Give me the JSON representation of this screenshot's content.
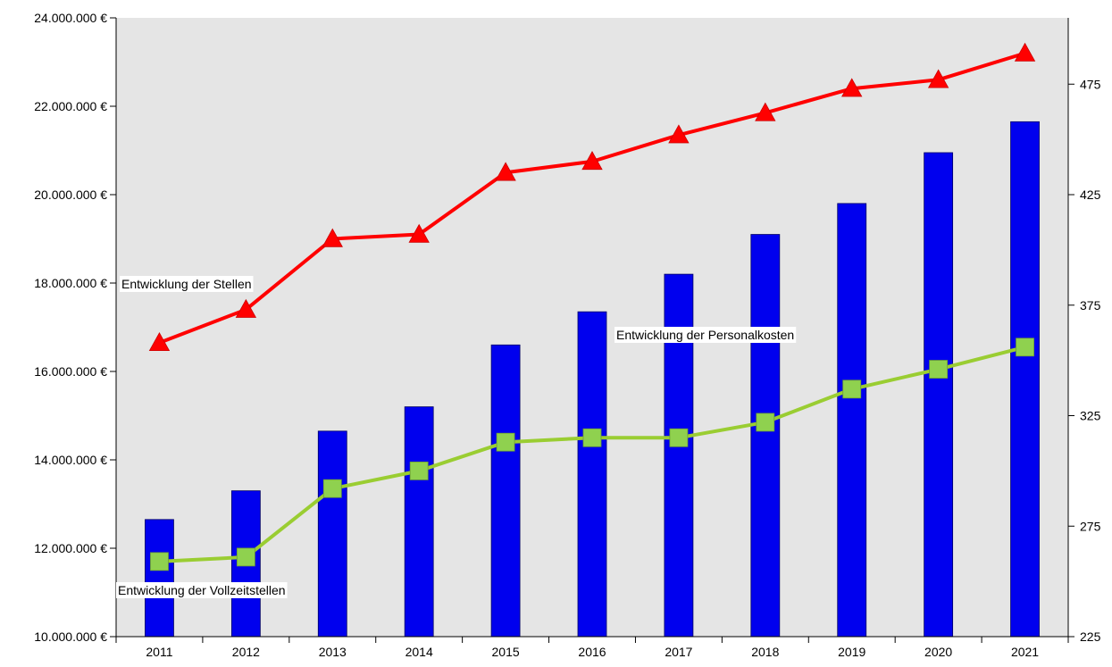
{
  "chart_data": {
    "type": "bar",
    "categories": [
      "2011",
      "2012",
      "2013",
      "2014",
      "2015",
      "2016",
      "2017",
      "2018",
      "2019",
      "2020",
      "2021"
    ],
    "left_axis": {
      "ylim": [
        10000000,
        24000000
      ],
      "ticks": [
        "10.000.000 €",
        "12.000.000 €",
        "14.000.000 €",
        "16.000.000 €",
        "18.000.000 €",
        "20.000.000 €",
        "22.000.000 €",
        "24.000.000 €"
      ],
      "tick_values": [
        10000000,
        12000000,
        14000000,
        16000000,
        18000000,
        20000000,
        22000000,
        24000000
      ]
    },
    "right_axis": {
      "ylim": [
        225,
        505
      ],
      "ticks": [
        "225",
        "275",
        "325",
        "375",
        "425",
        "475"
      ],
      "tick_values": [
        225,
        275,
        325,
        375,
        425,
        475
      ]
    },
    "series": [
      {
        "name": "Entwicklung der Personalkosten",
        "kind": "bar",
        "axis": "left",
        "color": "#0000ee",
        "values": [
          12650000,
          13300000,
          14650000,
          15200000,
          16600000,
          17350000,
          18200000,
          19100000,
          19800000,
          20950000,
          21650000
        ]
      },
      {
        "name": "Entwicklung der Stellen",
        "kind": "line",
        "axis": "right",
        "marker": "triangle",
        "color": "#ff0000",
        "marker_color": "#ff0000",
        "values": [
          358,
          373,
          405,
          407,
          435,
          440,
          452,
          462,
          473,
          477,
          489
        ]
      },
      {
        "name": "Entwicklung der Vollzeitstellen",
        "kind": "line",
        "axis": "right",
        "marker": "square",
        "color": "#9acd32",
        "marker_color": "#8fd14f",
        "values": [
          259,
          261,
          292,
          300,
          313,
          315,
          315,
          322,
          337,
          346,
          356
        ]
      }
    ],
    "annotations": [
      {
        "text": "Entwicklung der Stellen",
        "series": "Entwicklung der Stellen"
      },
      {
        "text": "Entwicklung der Personalkosten",
        "series": "Entwicklung der Personalkosten"
      },
      {
        "text": "Entwicklung der Vollzeitstellen",
        "series": "Entwicklung der Vollzeitstellen"
      }
    ],
    "grid": false,
    "legend": "none",
    "colors": {
      "plot_background": "#e5e5e5",
      "axis": "#000000"
    }
  }
}
